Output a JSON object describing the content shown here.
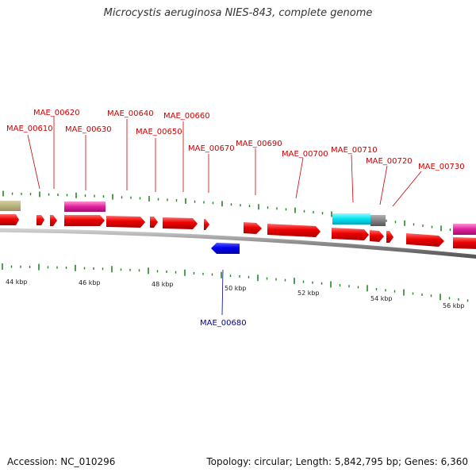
{
  "title": "Microcystis aeruginosa NIES-843, complete genome",
  "footer": {
    "accession": "Accession: NC_010296",
    "summary": "Topology: circular; Length: 5,842,795 bp; Genes: 6,360"
  },
  "colors": {
    "forward_gene": "#ff0000",
    "reverse_gene": "#0000ff",
    "label_forward": "#cc0000",
    "label_reverse": "#000099",
    "tick": "#228822",
    "backbone": "#888888"
  },
  "scale_labels": [
    "44 kbp",
    "46 kbp",
    "48 kbp",
    "50 kbp",
    "52 kbp",
    "54 kbp",
    "56 kbp"
  ],
  "gene_labels": [
    {
      "text": "MAE_00610",
      "strand": "forward"
    },
    {
      "text": "MAE_00620",
      "strand": "forward"
    },
    {
      "text": "MAE_00630",
      "strand": "forward"
    },
    {
      "text": "MAE_00640",
      "strand": "forward"
    },
    {
      "text": "MAE_00650",
      "strand": "forward"
    },
    {
      "text": "MAE_00660",
      "strand": "forward"
    },
    {
      "text": "MAE_00670",
      "strand": "forward"
    },
    {
      "text": "MAE_00690",
      "strand": "forward"
    },
    {
      "text": "MAE_00700",
      "strand": "forward"
    },
    {
      "text": "MAE_00710",
      "strand": "forward"
    },
    {
      "text": "MAE_00720",
      "strand": "forward"
    },
    {
      "text": "MAE_00730",
      "strand": "forward"
    },
    {
      "text": "MAE_00680",
      "strand": "reverse"
    }
  ]
}
